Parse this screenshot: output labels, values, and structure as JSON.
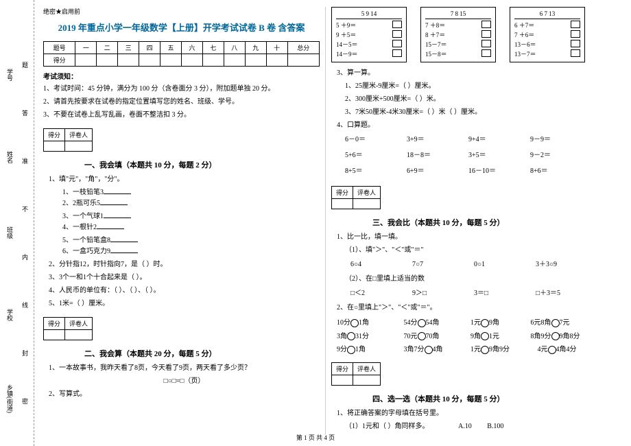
{
  "binding": {
    "labels": [
      "乡镇(街道)",
      "学校",
      "班级",
      "姓名",
      "学号"
    ],
    "marks": [
      "密",
      "封",
      "线",
      "内",
      "不",
      "准",
      "答",
      "题"
    ]
  },
  "secret": "绝密★启用前",
  "title": "2019 年重点小学一年级数学【上册】开学考试试卷 B 卷 含答案",
  "score_headers": [
    "题号",
    "一",
    "二",
    "三",
    "四",
    "五",
    "六",
    "七",
    "八",
    "九",
    "十",
    "总分"
  ],
  "score_row_label": "得分",
  "notice": {
    "title": "考试须知：",
    "items": [
      "1、考试时间：45 分钟，满分为 100 分（含卷面分 3 分），附加题单独 20 分。",
      "2、请首先按要求在试卷的指定位置填写您的姓名、班级、学号。",
      "3、不要在试卷上乱写乱画，卷面不整洁扣 3 分。"
    ]
  },
  "section_box": {
    "c1": "得分",
    "c2": "评卷人"
  },
  "sections": {
    "s1": "一、我会填（本题共 10 分，每题 2 分）",
    "s2": "二、我会算（本题共 20 分，每题 5 分）",
    "s3": "三、我会比（本题共 10 分，每题 5 分）",
    "s4": "四、选一选（本题共 10 分，每题 5 分）"
  },
  "q1": {
    "stem": "1、填\"元\"，\"角\"，\"分\"。",
    "items": [
      "1、一枝铅笔3",
      "2、2瓶可乐5",
      "3、一个气球1",
      "4、一根针2",
      "5、一个铅笔盒8",
      "6、一盒巧克力9"
    ]
  },
  "q2": "2、分针指12，时针指向7，是（   ）时。",
  "q3": "3、3个一和1个十合起来是（  ）。",
  "q4": "4、人民币的单位有：（  ）、（ ）、（ ）。",
  "q5": "5、1米=（        ）厘米。",
  "s2q1": "1、一本故事书，我昨天看了8页，今天看了9页，两天看了多少页？",
  "s2q1b": "□○□=□（页）",
  "s2q2": "2、写算式。",
  "calc_boxes": [
    {
      "hdr": "5    9   14",
      "rows": [
        "5 ＋9＝",
        "9 ＋5＝",
        "14－5＝",
        "14－9＝"
      ]
    },
    {
      "hdr": "7    8   15",
      "rows": [
        "7 ＋8＝",
        "8 ＋7＝",
        "15－7＝",
        "15－8＝"
      ]
    },
    {
      "hdr": "6    7   13",
      "rows": [
        "6 ＋7＝",
        "7 ＋6＝",
        "13－6＝",
        "13－7＝"
      ]
    }
  ],
  "s2q3": {
    "stem": "3、算一算。",
    "items": [
      "1、25厘米-9厘米=（  ）厘米。",
      "2、300厘米+500厘米=（  ）米。",
      "3、7米50厘米-4米30厘米=（  ）米（  ）厘米。"
    ]
  },
  "s2q4": {
    "stem": "4、口算题。",
    "rows": [
      [
        "6－0＝",
        "3+9＝",
        "9+4＝",
        "9－9＝"
      ],
      [
        "5+6＝",
        "18－8＝",
        "3+5＝",
        "9－2＝"
      ],
      [
        "8+5＝",
        "6+9＝",
        "16－10＝",
        "8+6＝"
      ]
    ]
  },
  "s3q1": {
    "stem": "1、比一比，填一填。",
    "line1": "（1）、填\"＞\"、\"＜\"或\"＝\"",
    "row1": [
      "6○4",
      "7○7",
      "0○1",
      "3＋3○9"
    ],
    "line2": "（2）、在□里填上适当的数",
    "row2": [
      "□＜2",
      "9＞□",
      "3＝□",
      "□＋3＝5"
    ]
  },
  "s3q2": "2、在○里填上\"＞\"、\"＜\"或\"＝\"。",
  "s3q2rows": [
    [
      "10分○1角",
      "54分○54角",
      "1元○9角",
      "6元8角○7元"
    ],
    [
      "3角○31分",
      "70元○70角",
      "9角○1元",
      "8角9分○9角8分"
    ],
    [
      "9分○1角",
      "3角7分○4角",
      "1元○9角9分",
      "4元○4角4分"
    ]
  ],
  "s4q1": {
    "stem": "1、将正确答案的字母填在括号里。",
    "item": "（1）1元和（       ）角同样多。",
    "a": "A.10",
    "b": "B.100"
  },
  "footer": "第 1 页 共 4 页"
}
